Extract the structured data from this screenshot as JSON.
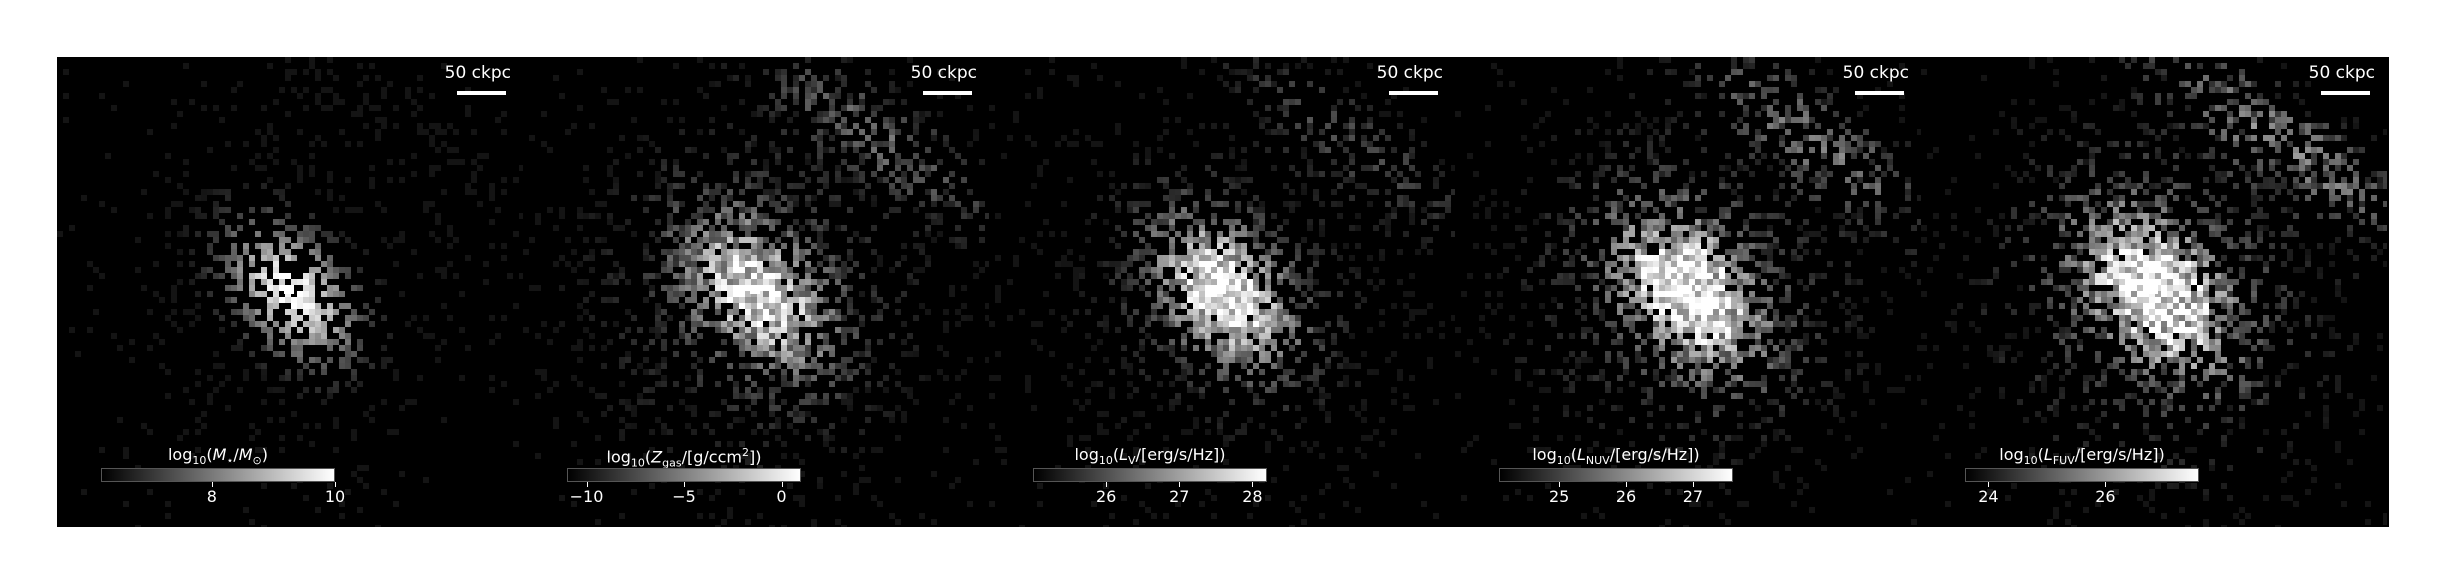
{
  "figure": {
    "panels": [
      {
        "name": "stellar-mass",
        "scale_label": "50 ckpc",
        "colorbar": {
          "label_parts": [
            "log",
            "10",
            "(",
            "M",
            "⋆",
            "/",
            "M",
            "⊙",
            ")"
          ],
          "range": [
            6.2,
            10.0
          ],
          "ticks": [
            {
              "value": 8,
              "label": "8"
            },
            {
              "value": 10,
              "label": "10"
            }
          ]
        },
        "style": {
          "concentration": 1.0,
          "scatter": 0.15,
          "density": 0.35
        }
      },
      {
        "name": "gas-metal-density",
        "scale_label": "50 ckpc",
        "colorbar": {
          "label_parts": [
            "log",
            "10",
            "(",
            "Z",
            "gas",
            "/",
            "[g/ccm",
            "2",
            "])"
          ],
          "range": [
            -11.0,
            1.0
          ],
          "ticks": [
            {
              "value": -10,
              "label": "−10"
            },
            {
              "value": -5,
              "label": "−5"
            },
            {
              "value": 0,
              "label": "0"
            }
          ]
        },
        "style": {
          "concentration": 0.6,
          "scatter": 0.55,
          "density": 0.75
        }
      },
      {
        "name": "v-band-luminosity",
        "scale_label": "50 ckpc",
        "colorbar": {
          "label_parts": [
            "log",
            "10",
            "(",
            "L",
            "V",
            "/",
            "[erg/s/Hz])",
            "",
            ""
          ],
          "range": [
            25.0,
            28.2
          ],
          "ticks": [
            {
              "value": 26,
              "label": "26"
            },
            {
              "value": 27,
              "label": "27"
            },
            {
              "value": 28,
              "label": "28"
            }
          ]
        },
        "style": {
          "concentration": 0.75,
          "scatter": 0.45,
          "density": 0.6
        }
      },
      {
        "name": "nuv-luminosity",
        "scale_label": "50 ckpc",
        "colorbar": {
          "label_parts": [
            "log",
            "10",
            "(",
            "L",
            "NUV",
            "/",
            "[erg/s/Hz])",
            "",
            ""
          ],
          "range": [
            24.1,
            27.6
          ],
          "ticks": [
            {
              "value": 25,
              "label": "25"
            },
            {
              "value": 26,
              "label": "26"
            },
            {
              "value": 27,
              "label": "27"
            }
          ]
        },
        "style": {
          "concentration": 0.7,
          "scatter": 0.6,
          "density": 0.7
        }
      },
      {
        "name": "fuv-luminosity",
        "scale_label": "50 ckpc",
        "colorbar": {
          "label_parts": [
            "log",
            "10",
            "(",
            "L",
            "FUV",
            "/",
            "[erg/s/Hz])",
            "",
            ""
          ],
          "range": [
            23.6,
            27.6
          ],
          "ticks": [
            {
              "value": 24,
              "label": "24"
            },
            {
              "value": 26,
              "label": "26"
            }
          ]
        },
        "style": {
          "concentration": 0.65,
          "scatter": 0.65,
          "density": 0.72
        }
      }
    ]
  }
}
